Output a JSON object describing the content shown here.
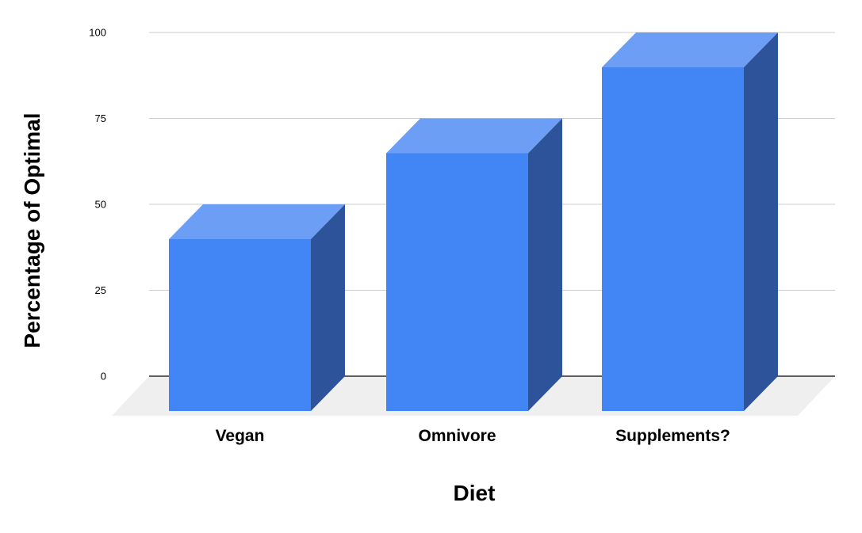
{
  "page": {
    "background_color": "#FFFFFF"
  },
  "chart_data": {
    "type": "bar",
    "style_3d": true,
    "title": "",
    "xlabel": "Diet",
    "ylabel": "Percentage of Optimal",
    "categories": [
      "Vegan",
      "Omnivore",
      "Supplements?"
    ],
    "values": [
      50,
      75,
      100
    ],
    "series": [
      {
        "name": "Percentage of Optimal",
        "values": [
          50,
          75,
          100
        ]
      }
    ],
    "ylim": [
      0,
      100
    ],
    "yticks": [
      0,
      25,
      50,
      75,
      100
    ],
    "grid": true,
    "legend": "none",
    "colors": {
      "bar_front": "#4285F4",
      "bar_top": "#6D9EF5",
      "bar_side": "#2D549B",
      "floor": "#EFEFEF",
      "gridline": "#CCCCCC",
      "axis_line": "#2F2F2F",
      "text": "#000000"
    }
  }
}
